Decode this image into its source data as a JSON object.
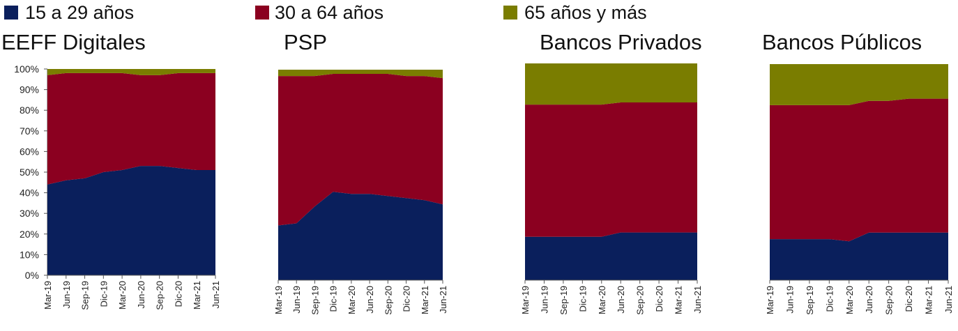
{
  "chart_data": [
    {
      "type": "area",
      "stacked": true,
      "title": "EEFF Digitales",
      "categories": [
        "Mar-19",
        "Jun-19",
        "Sep-19",
        "Dic-19",
        "Mar-20",
        "Jun-20",
        "Sep-20",
        "Dic-20",
        "Mar-21",
        "Jun-21"
      ],
      "y_ticks": [
        "0%",
        "10%",
        "20%",
        "30%",
        "40%",
        "50%",
        "60%",
        "70%",
        "80%",
        "90%",
        "100%"
      ],
      "ylim": [
        0,
        100
      ],
      "series": [
        {
          "name": "15 a 29 años",
          "values": [
            44,
            46,
            47,
            50,
            51,
            53,
            53,
            52,
            51,
            51
          ]
        },
        {
          "name": "30 a 64 años",
          "values": [
            53,
            52,
            51,
            48,
            47,
            44,
            44,
            46,
            47,
            47
          ]
        },
        {
          "name": "65 años y más",
          "values": [
            3,
            2,
            2,
            2,
            2,
            3,
            3,
            2,
            2,
            2
          ]
        }
      ]
    },
    {
      "type": "area",
      "stacked": true,
      "title": "PSP",
      "categories": [
        "Mar-19",
        "Jun-19",
        "Sep-19",
        "Dic-19",
        "Mar-20",
        "Jun-20",
        "Sep-20",
        "Dic-20",
        "Mar-21",
        "Jun-21"
      ],
      "ylim": [
        0,
        100
      ],
      "series": [
        {
          "name": "15 a 29 años",
          "values": [
            26,
            27,
            35,
            42,
            41,
            41,
            40,
            39,
            38,
            36
          ]
        },
        {
          "name": "30 a 64 años",
          "values": [
            71,
            70,
            62,
            56,
            57,
            57,
            58,
            58,
            59,
            60
          ]
        },
        {
          "name": "65 años y más",
          "values": [
            3,
            3,
            3,
            2,
            2,
            2,
            2,
            3,
            3,
            4
          ]
        }
      ]
    },
    {
      "type": "area",
      "stacked": true,
      "title": "Bancos Privados",
      "categories": [
        "Mar-19",
        "Jun-19",
        "Sep-19",
        "Dic-19",
        "Mar-20",
        "Jun-20",
        "Sep-20",
        "Dic-20",
        "Mar-21",
        "Jun-21"
      ],
      "ylim": [
        0,
        100
      ],
      "series": [
        {
          "name": "15 a 29 años",
          "values": [
            20,
            20,
            20,
            20,
            20,
            22,
            22,
            22,
            22,
            22
          ]
        },
        {
          "name": "30 a 64 años",
          "values": [
            61,
            61,
            61,
            61,
            61,
            60,
            60,
            60,
            60,
            60
          ]
        },
        {
          "name": "65 años y más",
          "values": [
            19,
            19,
            19,
            19,
            19,
            18,
            18,
            18,
            18,
            18
          ]
        }
      ]
    },
    {
      "type": "area",
      "stacked": true,
      "title": "Bancos Públicos",
      "categories": [
        "Mar-19",
        "Jun-19",
        "Sep-19",
        "Dic-19",
        "Mar-20",
        "Jun-20",
        "Sep-20",
        "Dic-20",
        "Mar-21",
        "Jun-21"
      ],
      "ylim": [
        0,
        100
      ],
      "series": [
        {
          "name": "15 a 29 años",
          "values": [
            19,
            19,
            19,
            19,
            18,
            22,
            22,
            22,
            22,
            22
          ]
        },
        {
          "name": "30 a 64 años",
          "values": [
            62,
            62,
            62,
            62,
            63,
            61,
            61,
            62,
            62,
            62
          ]
        },
        {
          "name": "65 años y más",
          "values": [
            19,
            19,
            19,
            19,
            19,
            17,
            17,
            16,
            16,
            16
          ]
        }
      ]
    }
  ],
  "legend": [
    {
      "label": "15 a 29 años",
      "color": "#0a1f5c"
    },
    {
      "label": "30 a 64 años",
      "color": "#8b0020"
    },
    {
      "label": "65 años y más",
      "color": "#7a7d00"
    }
  ]
}
